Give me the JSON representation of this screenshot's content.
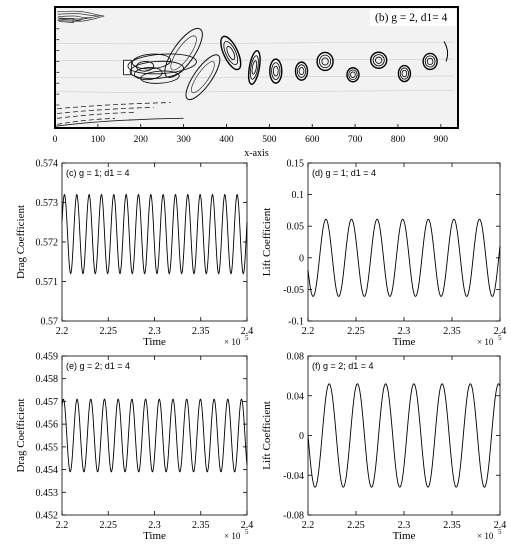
{
  "chart_data": [
    {
      "type": "contour",
      "panel_label": "(b) g = 2, d1= 4",
      "xlabel": "x-axis",
      "xlim": [
        0,
        940
      ],
      "x_ticks": [
        "0",
        "100",
        "200",
        "300",
        "400",
        "500",
        "600",
        "700",
        "800",
        "900"
      ]
    },
    {
      "type": "line",
      "panel_label": "(c) g = 1; d1 = 4",
      "xlabel": "Time",
      "ylabel": "Drag Coefficient",
      "x_exponent": "× 10",
      "x_exponent_power": "5",
      "xlim": [
        2.2,
        2.4
      ],
      "ylim": [
        0.57,
        0.574
      ],
      "x_ticks": [
        "2.2",
        "2.25",
        "2.3",
        "2.35",
        "2.4"
      ],
      "y_ticks": [
        "0.57",
        "0.571",
        "0.572",
        "0.573",
        "0.574"
      ],
      "series": [
        {
          "mean": 0.5722,
          "amplitude": 0.001,
          "cycles": 15,
          "phase": 0.05,
          "samples": 600
        }
      ]
    },
    {
      "type": "line",
      "panel_label": "(d) g = 1; d1 = 4",
      "xlabel": "Time",
      "ylabel": "Lift Coefficient",
      "x_exponent": "× 10",
      "x_exponent_power": "5",
      "xlim": [
        2.2,
        2.4
      ],
      "ylim": [
        -0.1,
        0.15
      ],
      "x_ticks": [
        "2.2",
        "2.25",
        "2.3",
        "2.35",
        "2.4"
      ],
      "y_ticks": [
        "-0.1",
        "-0.05",
        "0",
        "0.05",
        "0.1",
        "0.15"
      ],
      "series": [
        {
          "mean": 0.0,
          "amplitude": 0.061,
          "cycles": 7.5,
          "phase": 0.55,
          "samples": 600
        }
      ]
    },
    {
      "type": "line",
      "panel_label": "(e) g = 2; d1 = 4",
      "xlabel": "Time",
      "ylabel": "Drag Coefficient",
      "x_exponent": "× 10",
      "x_exponent_power": "5",
      "xlim": [
        2.2,
        2.4
      ],
      "ylim": [
        0.452,
        0.459
      ],
      "x_ticks": [
        "2.2",
        "2.25",
        "2.3",
        "2.35",
        "2.4"
      ],
      "y_ticks": [
        "0.452",
        "0.453",
        "0.454",
        "0.455",
        "0.456",
        "0.457",
        "0.458",
        "0.459"
      ],
      "series": [
        {
          "mean": 0.4555,
          "amplitude": 0.0016,
          "cycles": 13.5,
          "phase": 0.15,
          "samples": 600
        }
      ]
    },
    {
      "type": "line",
      "panel_label": "(f) g = 2; d1 = 4",
      "xlabel": "Time",
      "ylabel": "Lift Coefficient",
      "x_exponent": "× 10",
      "x_exponent_power": "5",
      "xlim": [
        2.2,
        2.4
      ],
      "ylim": [
        -0.08,
        0.08
      ],
      "x_ticks": [
        "2.2",
        "2.25",
        "2.3",
        "2.35",
        "2.4"
      ],
      "y_ticks": [
        "-0.08",
        "-0.04",
        "0",
        "0.04",
        "0.08"
      ],
      "series": [
        {
          "mean": 0.0,
          "amplitude": 0.052,
          "cycles": 6.8,
          "phase": 0.5,
          "samples": 600
        }
      ]
    }
  ]
}
